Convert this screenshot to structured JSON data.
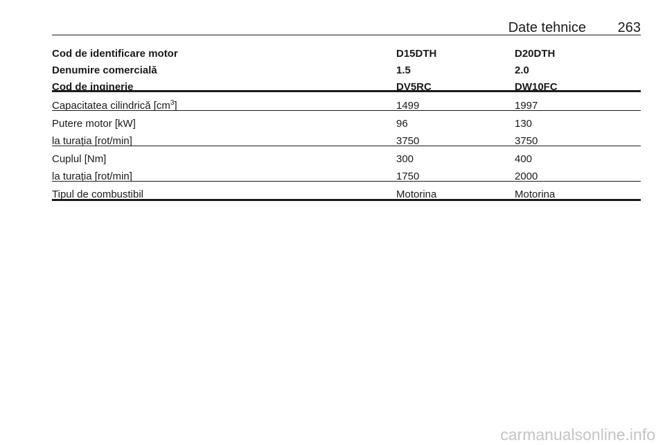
{
  "header": {
    "title": "Date tehnice",
    "page": "263"
  },
  "table": {
    "head": [
      [
        "Cod de identificare motor",
        "D15DTH",
        "D20DTH"
      ],
      [
        "Denumire comercială",
        "1.5",
        "2.0"
      ],
      [
        "Cod de inginerie",
        "DV5RC",
        "DW10FC"
      ]
    ],
    "body": [
      [
        [
          {
            "text": "Capacitatea cilindrică [cm",
            "sup": "3",
            "tail": "]"
          },
          "1499",
          "1997"
        ]
      ],
      [
        [
          "Putere motor [kW]",
          "96",
          "130"
        ],
        [
          "la turația [rot/min]",
          "3750",
          "3750"
        ]
      ],
      [
        [
          "Cuplul [Nm]",
          "300",
          "400"
        ],
        [
          "la turația [rot/min]",
          "1750",
          "2000"
        ]
      ],
      [
        [
          "Tipul de combustibil",
          "Motorina",
          "Motorina"
        ]
      ]
    ]
  },
  "watermark": "carmanualsonline.info"
}
